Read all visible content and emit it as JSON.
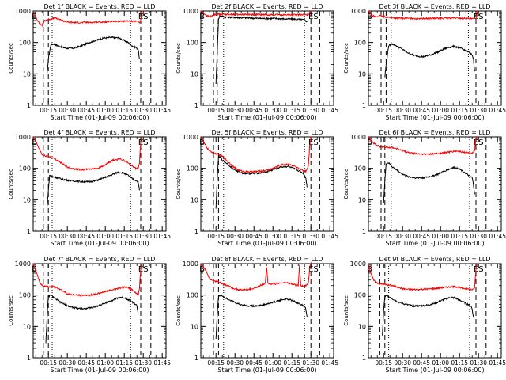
{
  "x_axis": {
    "ticks": [
      "00:15",
      "00:30",
      "00:45",
      "01:00",
      "01:15",
      "01:30",
      "01:45"
    ],
    "tick_values": [
      15,
      30,
      45,
      60,
      75,
      90,
      105
    ],
    "xlim": [
      3,
      108
    ],
    "label": "Start Time (01-Jul-09 00:06:00)"
  },
  "y_axis": {
    "scale": "log",
    "ticks": [
      "1",
      "10",
      "100",
      "1000"
    ],
    "tick_values": [
      1,
      10,
      100,
      1000
    ],
    "ylim": [
      1,
      1000
    ],
    "label": "Counts/sec"
  },
  "colors": {
    "events": "#000000",
    "lld": "#ff0000",
    "axes": "#000000"
  },
  "chart_data": [
    {
      "type": "line",
      "title": "Det 1f BLACK = Events, RED = LLD",
      "markers": {
        "B": 4,
        "E": 88,
        "S": 92
      },
      "dashed_x": [
        11,
        15,
        88,
        96
      ],
      "dotted_x": [
        18,
        80
      ],
      "series": [
        {
          "name": "Events",
          "x": [
            14,
            15,
            17,
            19,
            22,
            26,
            30,
            35,
            40,
            46,
            52,
            58,
            64,
            70,
            74,
            78,
            80,
            82,
            84,
            86,
            87
          ],
          "values": [
            10,
            30,
            85,
            90,
            80,
            70,
            65,
            66,
            75,
            95,
            115,
            135,
            145,
            140,
            120,
            100,
            85,
            75,
            70,
            60,
            30
          ]
        },
        {
          "name": "LLD",
          "x": [
            3,
            8,
            10,
            12,
            16,
            20,
            25,
            30,
            40,
            50,
            60,
            70,
            80,
            84,
            86,
            87,
            88,
            89,
            90
          ],
          "values": [
            900,
            400,
            350,
            500,
            550,
            600,
            520,
            440,
            430,
            440,
            450,
            470,
            480,
            470,
            480,
            420,
            500,
            950,
            1000
          ]
        }
      ]
    },
    {
      "type": "line",
      "title": "Det 2f BLACK = Events, RED = LLD",
      "markers": {
        "B": 4,
        "E": 90,
        "S": 94
      },
      "dashed_x": [
        13,
        16,
        90,
        97
      ],
      "dotted_x": [
        21,
        85
      ],
      "series": [
        {
          "name": "Events",
          "x": [
            15,
            16,
            17,
            18,
            22,
            30,
            40,
            50,
            60,
            70,
            78,
            82,
            85,
            87
          ],
          "values": [
            5,
            50,
            550,
            700,
            650,
            620,
            600,
            580,
            580,
            560,
            550,
            540,
            520,
            450
          ]
        },
        {
          "name": "LLD",
          "x": [
            3,
            6,
            8,
            10,
            12,
            14,
            17,
            20,
            30,
            40,
            50,
            60,
            70,
            80,
            86,
            88,
            89,
            90,
            91
          ],
          "values": [
            1000,
            800,
            700,
            650,
            700,
            780,
            800,
            790,
            780,
            780,
            770,
            760,
            760,
            760,
            750,
            780,
            900,
            1000,
            1000
          ]
        }
      ]
    },
    {
      "type": "line",
      "title": "Det 3f BLACK = Events, RED = LLD",
      "markers": {
        "B": 4,
        "E": 88,
        "S": 92
      },
      "dashed_x": [
        13,
        17,
        88,
        96
      ],
      "dotted_x": [
        21,
        82
      ],
      "series": [
        {
          "name": "Events",
          "x": [
            16,
            17,
            19,
            22,
            26,
            30,
            35,
            40,
            46,
            52,
            58,
            64,
            70,
            74,
            78,
            82,
            85,
            86,
            87
          ],
          "values": [
            8,
            20,
            80,
            90,
            75,
            60,
            45,
            38,
            35,
            40,
            50,
            65,
            75,
            70,
            60,
            50,
            40,
            30,
            12
          ]
        },
        {
          "name": "LLD",
          "x": [
            3,
            6,
            9,
            12,
            16,
            20,
            25,
            30,
            40,
            50,
            60,
            70,
            80,
            85,
            87,
            88,
            89,
            90
          ],
          "values": [
            1000,
            700,
            650,
            700,
            650,
            620,
            600,
            590,
            580,
            580,
            590,
            600,
            580,
            560,
            580,
            600,
            900,
            1000
          ]
        }
      ]
    },
    {
      "type": "line",
      "title": "Det 4f BLACK = Events, RED = LLD",
      "markers": {
        "B": 4,
        "E": 88,
        "S": 92
      },
      "dashed_x": [
        11,
        15,
        88,
        96
      ],
      "dotted_x": [
        18,
        80
      ],
      "series": [
        {
          "name": "Events",
          "x": [
            14,
            15,
            16,
            18,
            22,
            26,
            30,
            34,
            40,
            46,
            52,
            58,
            64,
            70,
            74,
            78,
            82,
            85,
            86,
            87
          ],
          "values": [
            6,
            20,
            60,
            55,
            50,
            45,
            42,
            40,
            38,
            37,
            40,
            48,
            60,
            75,
            72,
            60,
            45,
            40,
            35,
            20
          ]
        },
        {
          "name": "LLD",
          "x": [
            3,
            6,
            8,
            10,
            12,
            14,
            18,
            22,
            26,
            30,
            36,
            42,
            48,
            54,
            60,
            66,
            72,
            76,
            80,
            84,
            86,
            87,
            88,
            89
          ],
          "values": [
            1000,
            600,
            400,
            280,
            250,
            250,
            220,
            180,
            140,
            110,
            95,
            90,
            95,
            100,
            130,
            180,
            200,
            170,
            130,
            100,
            100,
            150,
            700,
            1000
          ]
        }
      ]
    },
    {
      "type": "line",
      "title": "Det 5f BLACK = Events, RED = LLD",
      "markers": {
        "B": 4,
        "E": 90,
        "S": 94
      },
      "dashed_x": [
        13,
        17,
        90,
        97
      ],
      "dotted_x": [
        21,
        85
      ],
      "series": [
        {
          "name": "Events",
          "x": [
            15,
            16,
            17,
            18,
            20,
            24,
            28,
            32,
            36,
            42,
            48,
            54,
            60,
            66,
            72,
            76,
            80,
            84,
            86,
            87
          ],
          "values": [
            5,
            50,
            220,
            240,
            180,
            140,
            100,
            80,
            70,
            68,
            70,
            75,
            90,
            110,
            115,
            100,
            85,
            70,
            50,
            25
          ]
        },
        {
          "name": "LLD",
          "x": [
            3,
            6,
            8,
            10,
            12,
            14,
            17,
            20,
            24,
            28,
            32,
            36,
            42,
            48,
            54,
            60,
            66,
            72,
            76,
            80,
            84,
            86,
            88,
            89,
            90,
            91
          ],
          "values": [
            1000,
            600,
            450,
            350,
            330,
            300,
            280,
            240,
            170,
            120,
            90,
            80,
            78,
            80,
            85,
            100,
            130,
            135,
            120,
            100,
            85,
            80,
            120,
            500,
            1000,
            1000
          ]
        }
      ]
    },
    {
      "type": "line",
      "title": "Det 6f BLACK = Events, RED = LLD",
      "markers": {
        "B": 4,
        "E": 88,
        "S": 92
      },
      "dashed_x": [
        13,
        16,
        88,
        96
      ],
      "dotted_x": [
        21,
        83
      ],
      "series": [
        {
          "name": "Events",
          "x": [
            15,
            16,
            17,
            19,
            22,
            26,
            30,
            34,
            40,
            46,
            52,
            58,
            64,
            70,
            74,
            78,
            82,
            85,
            86,
            87
          ],
          "values": [
            8,
            40,
            140,
            150,
            110,
            85,
            65,
            55,
            50,
            50,
            55,
            65,
            85,
            105,
            100,
            80,
            60,
            50,
            30,
            15
          ]
        },
        {
          "name": "LLD",
          "x": [
            3,
            6,
            9,
            12,
            15,
            18,
            22,
            26,
            30,
            36,
            42,
            48,
            54,
            60,
            66,
            72,
            76,
            80,
            84,
            86,
            87,
            88,
            89
          ],
          "values": [
            1000,
            700,
            550,
            500,
            480,
            470,
            460,
            420,
            360,
            310,
            290,
            280,
            290,
            300,
            330,
            350,
            340,
            320,
            300,
            320,
            400,
            900,
            1000
          ]
        }
      ]
    },
    {
      "type": "line",
      "title": "Det 7f BLACK = Events, RED = LLD",
      "markers": {
        "B": 4,
        "E": 88,
        "S": 92
      },
      "dashed_x": [
        11,
        15,
        88,
        96
      ],
      "dotted_x": [
        18,
        80
      ],
      "series": [
        {
          "name": "Events",
          "x": [
            13,
            14,
            15,
            17,
            20,
            24,
            28,
            32,
            38,
            44,
            50,
            56,
            62,
            68,
            72,
            76,
            80,
            84,
            85,
            86
          ],
          "values": [
            3,
            20,
            90,
            100,
            80,
            60,
            50,
            42,
            38,
            37,
            40,
            48,
            60,
            75,
            85,
            80,
            65,
            50,
            45,
            25
          ]
        },
        {
          "name": "LLD",
          "x": [
            3,
            5,
            7,
            9,
            11,
            13,
            15,
            18,
            22,
            26,
            30,
            36,
            42,
            48,
            54,
            60,
            66,
            72,
            76,
            80,
            84,
            86,
            87,
            88,
            89
          ],
          "values": [
            1000,
            600,
            350,
            220,
            200,
            190,
            180,
            190,
            170,
            140,
            110,
            100,
            98,
            100,
            110,
            130,
            150,
            170,
            180,
            160,
            120,
            100,
            160,
            700,
            1000
          ]
        }
      ]
    },
    {
      "type": "line",
      "title": "Det 8f BLACK = Events, RED = LLD",
      "markers": {
        "B": 4,
        "E": 90,
        "S": 94
      },
      "dashed_x": [
        13,
        17,
        90,
        97
      ],
      "dotted_x": [
        21,
        85
      ],
      "series": [
        {
          "name": "Events",
          "x": [
            15,
            16,
            17,
            19,
            22,
            26,
            30,
            34,
            40,
            46,
            52,
            58,
            64,
            70,
            74,
            78,
            82,
            85,
            86,
            87
          ],
          "values": [
            4,
            25,
            90,
            100,
            85,
            70,
            58,
            50,
            45,
            45,
            48,
            55,
            65,
            75,
            70,
            60,
            50,
            45,
            35,
            20
          ]
        },
        {
          "name": "LLD",
          "x": [
            3,
            6,
            8,
            10,
            12,
            14,
            17,
            20,
            24,
            28,
            32,
            36,
            40,
            44,
            48,
            52,
            54,
            55,
            56,
            58,
            62,
            66,
            70,
            74,
            78,
            80,
            81,
            82,
            84,
            86,
            88,
            89,
            90,
            91
          ],
          "values": [
            1000,
            700,
            500,
            320,
            300,
            280,
            260,
            230,
            200,
            170,
            150,
            145,
            150,
            160,
            180,
            220,
            240,
            800,
            240,
            230,
            230,
            240,
            250,
            230,
            210,
            200,
            900,
            200,
            190,
            200,
            250,
            700,
            1000,
            1000
          ]
        }
      ]
    },
    {
      "type": "line",
      "title": "Det 9f BLACK = Events, RED = LLD",
      "markers": {
        "B": 4,
        "E": 88,
        "S": 92
      },
      "dashed_x": [
        12,
        16,
        88,
        96
      ],
      "dotted_x": [
        19,
        83
      ],
      "series": [
        {
          "name": "Events",
          "x": [
            14,
            15,
            16,
            18,
            21,
            25,
            29,
            33,
            38,
            44,
            50,
            56,
            62,
            68,
            72,
            76,
            80,
            84,
            85,
            86
          ],
          "values": [
            5,
            30,
            90,
            95,
            80,
            65,
            55,
            50,
            45,
            45,
            48,
            55,
            70,
            85,
            80,
            65,
            55,
            45,
            35,
            20
          ]
        },
        {
          "name": "LLD",
          "x": [
            3,
            5,
            7,
            9,
            12,
            15,
            18,
            22,
            26,
            30,
            36,
            42,
            48,
            54,
            60,
            66,
            72,
            76,
            80,
            84,
            86,
            87,
            88,
            89
          ],
          "values": [
            1000,
            500,
            300,
            250,
            230,
            220,
            210,
            200,
            180,
            160,
            150,
            150,
            155,
            160,
            170,
            180,
            185,
            170,
            160,
            150,
            150,
            180,
            700,
            1000
          ]
        }
      ]
    }
  ]
}
